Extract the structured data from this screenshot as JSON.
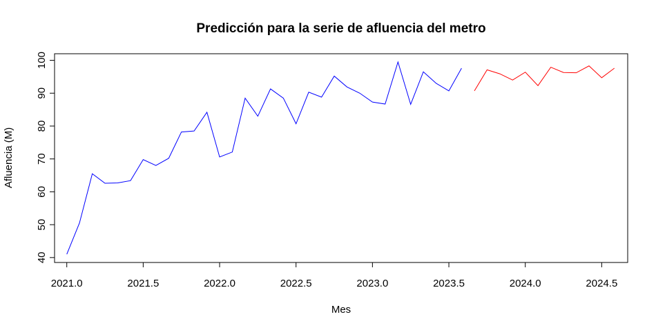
{
  "chart_data": {
    "type": "line",
    "title": "Predicción para la serie de afluencia del metro",
    "xlabel": "Mes",
    "ylabel": "Afluencia (M)",
    "xlim": [
      2020.92,
      2024.67
    ],
    "ylim": [
      38.5,
      102
    ],
    "xticks": [
      2021.0,
      2021.5,
      2022.0,
      2022.5,
      2023.0,
      2023.5,
      2024.0,
      2024.5
    ],
    "xtick_labels": [
      "2021.0",
      "2021.5",
      "2022.0",
      "2022.5",
      "2023.0",
      "2023.5",
      "2024.0",
      "2024.5"
    ],
    "yticks": [
      40,
      50,
      60,
      70,
      80,
      90,
      100
    ],
    "ytick_labels": [
      "40",
      "50",
      "60",
      "70",
      "80",
      "90",
      "100"
    ],
    "grid": false,
    "series": [
      {
        "color": "#0000ff",
        "x": [
          2021.0,
          2021.083,
          2021.167,
          2021.25,
          2021.333,
          2021.417,
          2021.5,
          2021.583,
          2021.667,
          2021.75,
          2021.833,
          2021.917,
          2022.0,
          2022.083,
          2022.167,
          2022.25,
          2022.333,
          2022.417,
          2022.5,
          2022.583,
          2022.667,
          2022.75,
          2022.833,
          2022.917,
          2023.0,
          2023.083,
          2023.167,
          2023.25,
          2023.333,
          2023.417,
          2023.5,
          2023.583
        ],
        "y": [
          41.0,
          50.5,
          65.5,
          62.6,
          62.7,
          63.4,
          69.8,
          68.0,
          70.2,
          78.2,
          78.5,
          84.2,
          70.6,
          72.1,
          88.5,
          83.0,
          91.3,
          88.5,
          80.7,
          90.3,
          88.8,
          95.2,
          91.9,
          90.0,
          87.3,
          86.7,
          99.5,
          86.6,
          96.5,
          93.0,
          90.7,
          97.6
        ]
      },
      {
        "color": "#ff0000",
        "x": [
          2023.667,
          2023.75,
          2023.833,
          2023.917,
          2024.0,
          2024.083,
          2024.167,
          2024.25,
          2024.333,
          2024.417,
          2024.5,
          2024.583
        ],
        "y": [
          90.7,
          97.1,
          95.9,
          94.0,
          96.4,
          92.3,
          97.9,
          96.3,
          96.2,
          98.3,
          94.7,
          97.6
        ]
      }
    ]
  }
}
